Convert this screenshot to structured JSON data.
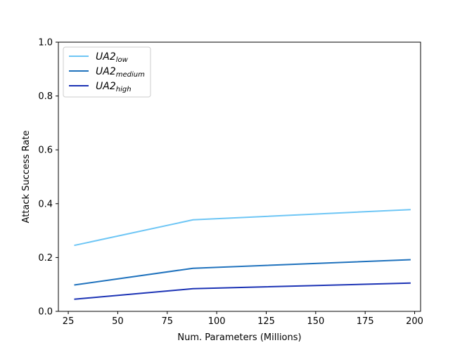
{
  "chart_data": {
    "type": "line",
    "title": "",
    "xlabel": "Num. Parameters (Millions)",
    "ylabel": "Attack Success Rate",
    "xlim": [
      20,
      203
    ],
    "ylim": [
      0.0,
      1.0
    ],
    "xticks": [
      25,
      50,
      75,
      100,
      125,
      150,
      175,
      200
    ],
    "yticks": [
      0.0,
      0.2,
      0.4,
      0.6,
      0.8,
      1.0
    ],
    "xtick_labels": [
      "25",
      "50",
      "75",
      "100",
      "125",
      "150",
      "175",
      "200"
    ],
    "ytick_labels": [
      "0.0",
      "0.2",
      "0.4",
      "0.6",
      "0.8",
      "1.0"
    ],
    "grid": false,
    "legend_position": "top-left",
    "series": [
      {
        "name": "UA2",
        "subscript": "low",
        "color": "#6ec6f5",
        "x": [
          28,
          88,
          198
        ],
        "y": [
          0.245,
          0.34,
          0.378
        ]
      },
      {
        "name": "UA2",
        "subscript": "medium",
        "color": "#1f72bd",
        "x": [
          28,
          88,
          198
        ],
        "y": [
          0.098,
          0.16,
          0.192
        ]
      },
      {
        "name": "UA2",
        "subscript": "high",
        "color": "#1c33b5",
        "x": [
          28,
          88,
          198
        ],
        "y": [
          0.045,
          0.084,
          0.105
        ]
      }
    ]
  }
}
